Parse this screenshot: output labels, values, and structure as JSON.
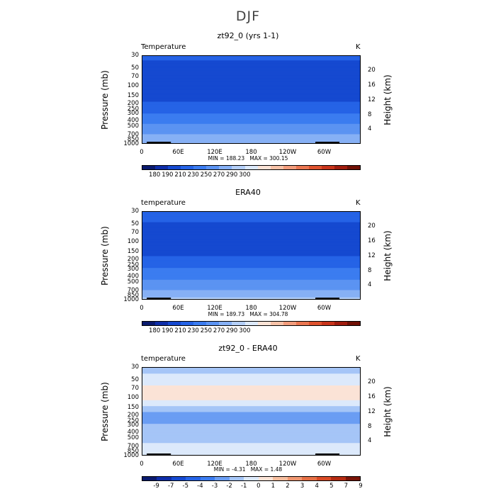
{
  "figure_title": "DJF",
  "chart_data": [
    {
      "type": "heatmap",
      "title": "zt92_0 (yrs 1-1)",
      "field_label": "Temperature",
      "units": "K",
      "ylabel_left": "Pressure (mb)",
      "ylabel_right": "Height (km)",
      "x_ticks": [
        "0",
        "60E",
        "120E",
        "180",
        "120W",
        "60W"
      ],
      "y_ticks_left": [
        "30",
        "50",
        "70",
        "100",
        "150",
        "200",
        "250",
        "300",
        "400",
        "500",
        "700",
        "850",
        "1000"
      ],
      "y_ticks_right": [
        "20",
        "16",
        "12",
        "8",
        "4"
      ],
      "min_label": "MIN = 188.23",
      "max_label": "MAX = 300.15",
      "min": 188.23,
      "max": 300.15,
      "colorbar_labels": [
        "180",
        "190",
        "210",
        "230",
        "250",
        "270",
        "290",
        "300"
      ],
      "profile": [
        {
          "pressure": 30,
          "value": 212
        },
        {
          "pressure": 50,
          "value": 206
        },
        {
          "pressure": 70,
          "value": 200
        },
        {
          "pressure": 100,
          "value": 198
        },
        {
          "pressure": 150,
          "value": 203
        },
        {
          "pressure": 200,
          "value": 214
        },
        {
          "pressure": 250,
          "value": 223
        },
        {
          "pressure": 300,
          "value": 232
        },
        {
          "pressure": 400,
          "value": 245
        },
        {
          "pressure": 500,
          "value": 256
        },
        {
          "pressure": 700,
          "value": 272
        },
        {
          "pressure": 850,
          "value": 283
        },
        {
          "pressure": 1000,
          "value": 294
        }
      ]
    },
    {
      "type": "heatmap",
      "title": "ERA40",
      "field_label": "temperature",
      "units": "K",
      "ylabel_left": "Pressure (mb)",
      "ylabel_right": "Height (km)",
      "x_ticks": [
        "0",
        "60E",
        "120E",
        "180",
        "120W",
        "60W"
      ],
      "y_ticks_left": [
        "30",
        "50",
        "70",
        "100",
        "150",
        "200",
        "250",
        "300",
        "400",
        "500",
        "700",
        "850",
        "1000"
      ],
      "y_ticks_right": [
        "20",
        "16",
        "12",
        "8",
        "4"
      ],
      "min_label": "MIN = 189.73",
      "max_label": "MAX = 304.78",
      "min": 189.73,
      "max": 304.78,
      "colorbar_labels": [
        "180",
        "190",
        "210",
        "230",
        "250",
        "270",
        "290",
        "300"
      ],
      "profile": [
        {
          "pressure": 30,
          "value": 216
        },
        {
          "pressure": 50,
          "value": 208
        },
        {
          "pressure": 70,
          "value": 201
        },
        {
          "pressure": 100,
          "value": 198
        },
        {
          "pressure": 150,
          "value": 204
        },
        {
          "pressure": 200,
          "value": 215
        },
        {
          "pressure": 250,
          "value": 224
        },
        {
          "pressure": 300,
          "value": 233
        },
        {
          "pressure": 400,
          "value": 246
        },
        {
          "pressure": 500,
          "value": 257
        },
        {
          "pressure": 700,
          "value": 274
        },
        {
          "pressure": 850,
          "value": 285
        },
        {
          "pressure": 1000,
          "value": 297
        }
      ]
    },
    {
      "type": "heatmap",
      "title": "zt92_0 - ERA40",
      "field_label": "temperature",
      "units": "K",
      "ylabel_left": "Pressure (mb)",
      "ylabel_right": "Height (km)",
      "x_ticks": [
        "0",
        "60E",
        "120E",
        "180",
        "120W",
        "60W"
      ],
      "y_ticks_left": [
        "30",
        "50",
        "70",
        "100",
        "150",
        "200",
        "250",
        "300",
        "400",
        "500",
        "700",
        "850",
        "1000"
      ],
      "y_ticks_right": [
        "20",
        "16",
        "12",
        "8",
        "4"
      ],
      "min_label": "MIN =   -4.31",
      "max_label": "MAX =    1.48",
      "min": -4.31,
      "max": 1.48,
      "colorbar_labels": [
        "-9",
        "-7",
        "-5",
        "-4",
        "-3",
        "-2",
        "-1",
        "0",
        "1",
        "2",
        "3",
        "4",
        "5",
        "7",
        "9"
      ],
      "profile": [
        {
          "pressure": 30,
          "value": -1.5
        },
        {
          "pressure": 50,
          "value": -0.5
        },
        {
          "pressure": 70,
          "value": 0.5
        },
        {
          "pressure": 100,
          "value": 0.3
        },
        {
          "pressure": 150,
          "value": -1.5
        },
        {
          "pressure": 200,
          "value": -2.5
        },
        {
          "pressure": 250,
          "value": -2.2
        },
        {
          "pressure": 300,
          "value": -1.8
        },
        {
          "pressure": 400,
          "value": -1.4
        },
        {
          "pressure": 500,
          "value": -1.2
        },
        {
          "pressure": 700,
          "value": -0.8
        },
        {
          "pressure": 850,
          "value": -0.4
        },
        {
          "pressure": 1000,
          "value": -0.6
        }
      ]
    }
  ],
  "palettes": {
    "temperature": [
      "#0a1a6e",
      "#0e2da8",
      "#1549d0",
      "#2563e6",
      "#3b7cf0",
      "#5b93f2",
      "#86b0f5",
      "#b4cff8",
      "#dce9fb",
      "#fbe3d6",
      "#f7c2a8",
      "#f29c7c",
      "#ea7651",
      "#de522e",
      "#c8341b",
      "#a01c0e",
      "#701005"
    ],
    "difference": [
      "#0a1a6e",
      "#0e2da8",
      "#1549d0",
      "#2563e6",
      "#3b7cf0",
      "#6a9df3",
      "#a5c5f7",
      "#dce9fb",
      "#fbe3d6",
      "#f5bd9e",
      "#ef9670",
      "#e56f45",
      "#d84a25",
      "#b52b12",
      "#7a1408"
    ]
  }
}
